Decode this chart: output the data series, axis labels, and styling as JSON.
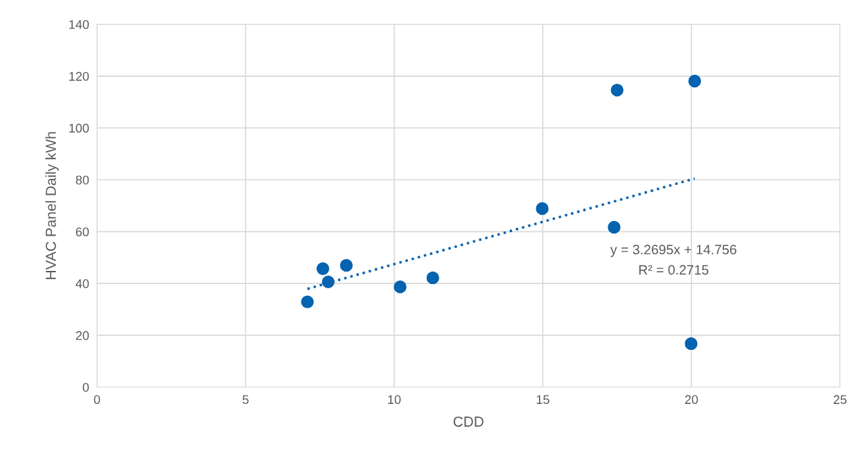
{
  "chart_data": {
    "type": "scatter",
    "xlabel": "CDD",
    "ylabel": "HVAC Panel Daily kWh",
    "series": [
      {
        "color": "#0563b0",
        "marker": "circle",
        "x": [
          7.08,
          7.6,
          7.78,
          8.39,
          10.2,
          11.3,
          14.98,
          17.4,
          17.5,
          20.11,
          19.99
        ],
        "values": [
          32.9,
          45.7,
          40.6,
          47.0,
          38.7,
          42.2,
          68.9,
          61.7,
          114.6,
          118.1,
          16.8
        ]
      },
      {
        "type": "line",
        "color": "#0563b0",
        "line_style": "dotted",
        "marker": "none",
        "x": [
          7.08,
          20.11
        ],
        "values": [
          37.9,
          80.5
        ]
      }
    ],
    "annotations": [
      "y = 3.2695x + 14.756",
      "R² = 0.2715"
    ],
    "xlim": [
      0,
      25
    ],
    "xticks": [
      0,
      5,
      10,
      15,
      20,
      25
    ],
    "ylim": [
      0,
      140
    ],
    "yticks": [
      0,
      20,
      40,
      60,
      80,
      100,
      120,
      140
    ],
    "grid": true
  }
}
